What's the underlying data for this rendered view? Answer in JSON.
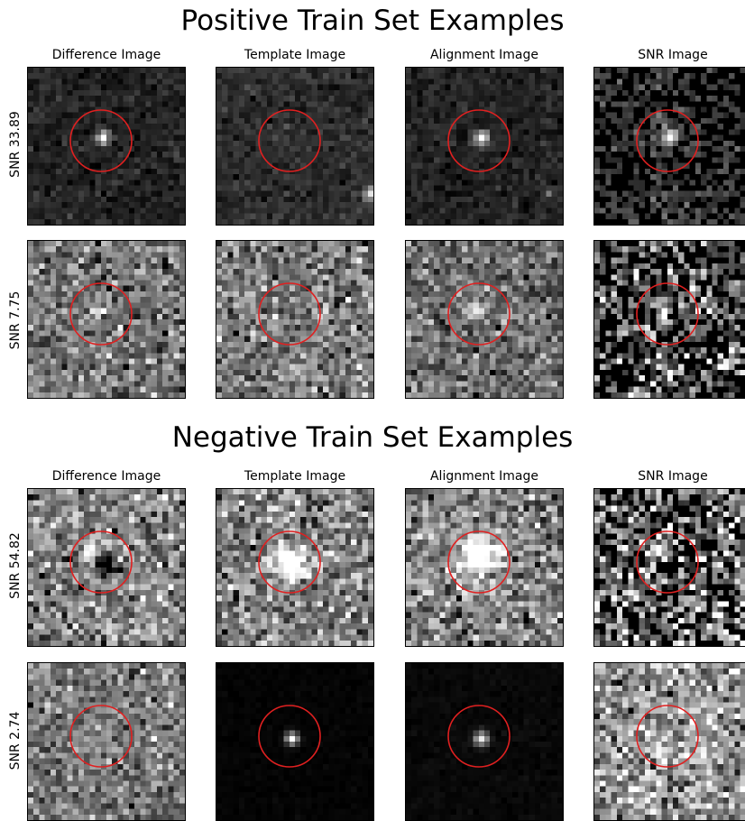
{
  "sections": [
    {
      "title": "Positive Train Set Examples",
      "columns": [
        "Difference Image",
        "Template Image",
        "Alignment Image",
        "SNR Image"
      ],
      "rows": [
        {
          "label": "SNR 33.89"
        },
        {
          "label": "SNR 7.75"
        }
      ]
    },
    {
      "title": "Negative Train Set Examples",
      "columns": [
        "Difference Image",
        "Template Image",
        "Alignment Image",
        "SNR Image"
      ],
      "rows": [
        {
          "label": "SNR 54.82"
        },
        {
          "label": "SNR 2.74"
        }
      ]
    }
  ],
  "colors": {
    "circle": "#e02020",
    "frame": "#000000"
  }
}
